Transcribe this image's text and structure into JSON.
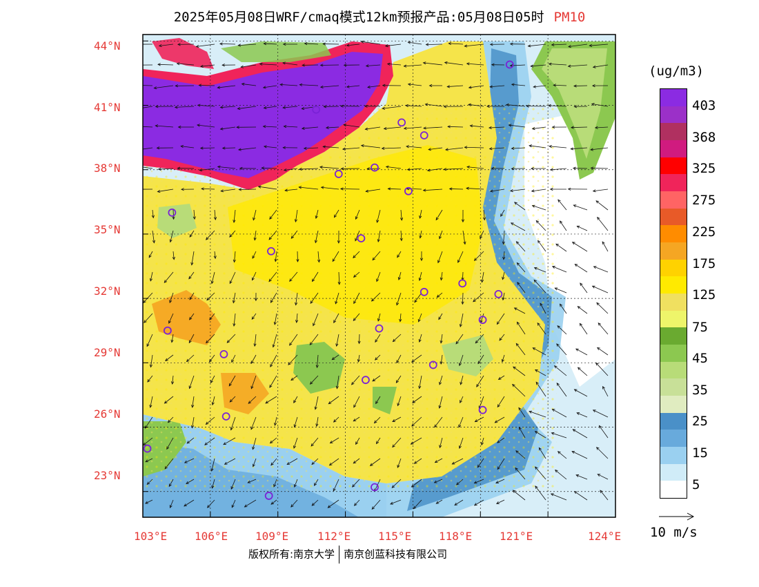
{
  "title": {
    "main": "2025年05月08日WRF/cmaq模式12km预报产品:05月08日05时",
    "pollutant": "PM10"
  },
  "legend": {
    "unit": "(ug/m3)",
    "colors_top_to_bottom": [
      "#8b2be2",
      "#9b30c8",
      "#b03060",
      "#d01b7f",
      "#ff0000",
      "#f0245a",
      "#ff6464",
      "#e85a28",
      "#ff8c00",
      "#f5a623",
      "#ffd200",
      "#ffea00",
      "#f0e060",
      "#eef56a",
      "#6aaa30",
      "#8cc850",
      "#b8dc78",
      "#c8e098",
      "#e0ecc0",
      "#4a90c8",
      "#68aadc",
      "#9ad0f0",
      "#d0ecf8",
      "#ffffff"
    ],
    "labels": [
      "403",
      "368",
      "325",
      "275",
      "225",
      "175",
      "125",
      "75",
      "45",
      "35",
      "25",
      "15",
      "5"
    ]
  },
  "wind_key": {
    "label": "10 m/s"
  },
  "axes": {
    "lat_labels": [
      "44°N",
      "41°N",
      "38°N",
      "35°N",
      "32°N",
      "29°N",
      "26°N",
      "23°N"
    ],
    "lon_labels": [
      "103°E",
      "106°E",
      "109°E",
      "112°E",
      "115°E",
      "118°E",
      "121°E",
      "124°E"
    ]
  },
  "map": {
    "extent": {
      "lon_min": 103,
      "lon_max": 124,
      "lat_min": 21.8,
      "lat_max": 44.3
    },
    "colors": {
      "sea_white": "#ffffff",
      "sea_light": "#d8eef8",
      "sea_mid": "#9ad0f0",
      "sea_deep": "#4a90c8",
      "land_green": "#8cc850",
      "land_yellow": "#f5e44a",
      "land_bright": "#ffea00",
      "orange": "#f5a623",
      "red": "#f0245a",
      "purple": "#8b2be2",
      "city_marker": "#7a22d6"
    },
    "cities": [
      {
        "lon": 110.7,
        "lat": 40.8
      },
      {
        "lon": 111.7,
        "lat": 37.8
      },
      {
        "lon": 113.3,
        "lat": 38.1
      },
      {
        "lon": 114.5,
        "lat": 40.2
      },
      {
        "lon": 115.5,
        "lat": 39.6
      },
      {
        "lon": 114.8,
        "lat": 37.0
      },
      {
        "lon": 104.3,
        "lat": 36.0
      },
      {
        "lon": 108.7,
        "lat": 34.2
      },
      {
        "lon": 112.7,
        "lat": 34.8
      },
      {
        "lon": 117.2,
        "lat": 32.7
      },
      {
        "lon": 118.8,
        "lat": 32.2
      },
      {
        "lon": 115.5,
        "lat": 32.3
      },
      {
        "lon": 113.5,
        "lat": 30.6
      },
      {
        "lon": 118.1,
        "lat": 31.0
      },
      {
        "lon": 104.1,
        "lat": 30.5
      },
      {
        "lon": 106.6,
        "lat": 29.4
      },
      {
        "lon": 112.9,
        "lat": 28.2
      },
      {
        "lon": 115.9,
        "lat": 28.9
      },
      {
        "lon": 106.7,
        "lat": 26.5
      },
      {
        "lon": 118.1,
        "lat": 26.8
      },
      {
        "lon": 103.2,
        "lat": 25.0
      },
      {
        "lon": 108.6,
        "lat": 22.8
      },
      {
        "lon": 113.3,
        "lat": 23.2
      },
      {
        "lon": 119.3,
        "lat": 42.9
      }
    ]
  }
}
